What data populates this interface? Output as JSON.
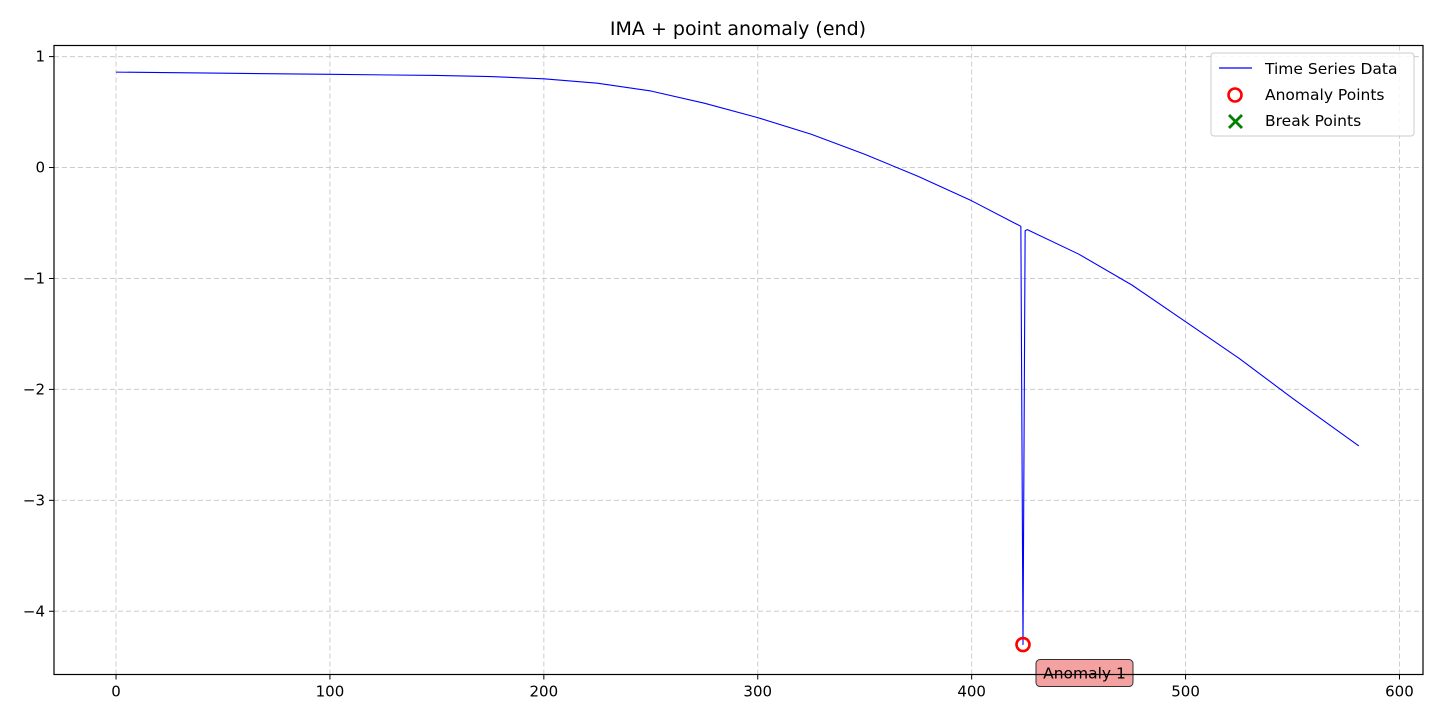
{
  "chart_data": {
    "type": "line",
    "title": "IMA + point anomaly (end)",
    "xlabel": "",
    "ylabel": "",
    "xlim": [
      -29,
      611
    ],
    "ylim": [
      -4.57,
      1.1
    ],
    "xticks": [
      0,
      100,
      200,
      300,
      400,
      500,
      600
    ],
    "yticks": [
      1,
      0,
      -1,
      -2,
      -3,
      -4
    ],
    "xtick_labels": [
      "0",
      "100",
      "200",
      "300",
      "400",
      "500",
      "600"
    ],
    "ytick_labels": [
      "1",
      "0",
      "−1",
      "−2",
      "−3",
      "−4"
    ],
    "grid": true,
    "legend_position": "top-right",
    "series": [
      {
        "name": "Time Series Data",
        "color": "#0000ff",
        "x": [
          0,
          50,
          100,
          150,
          175,
          200,
          225,
          250,
          275,
          300,
          325,
          350,
          375,
          400,
          423,
          424,
          425,
          426,
          450,
          475,
          500,
          525,
          550,
          581
        ],
        "y": [
          0.86,
          0.85,
          0.84,
          0.83,
          0.82,
          0.8,
          0.76,
          0.69,
          0.58,
          0.45,
          0.3,
          0.12,
          -0.08,
          -0.3,
          -0.53,
          -4.3,
          -0.57,
          -0.56,
          -0.78,
          -1.06,
          -1.39,
          -1.72,
          -2.08,
          -2.51
        ]
      }
    ],
    "anomaly_points": [
      {
        "name": "Anomaly Points",
        "x": 424,
        "y": -4.3,
        "label": "Anomaly 1",
        "color": "#ff0000"
      }
    ],
    "break_points": [],
    "legend": [
      {
        "label": "Time Series Data",
        "marker": "line",
        "color": "#0000ff"
      },
      {
        "label": "Anomaly Points",
        "marker": "circle",
        "color": "#ff0000"
      },
      {
        "label": "Break Points",
        "marker": "x",
        "color": "#008000"
      }
    ],
    "colors": {
      "grid": "#cccccc",
      "annotation_fill": "#f4a1a1"
    }
  }
}
